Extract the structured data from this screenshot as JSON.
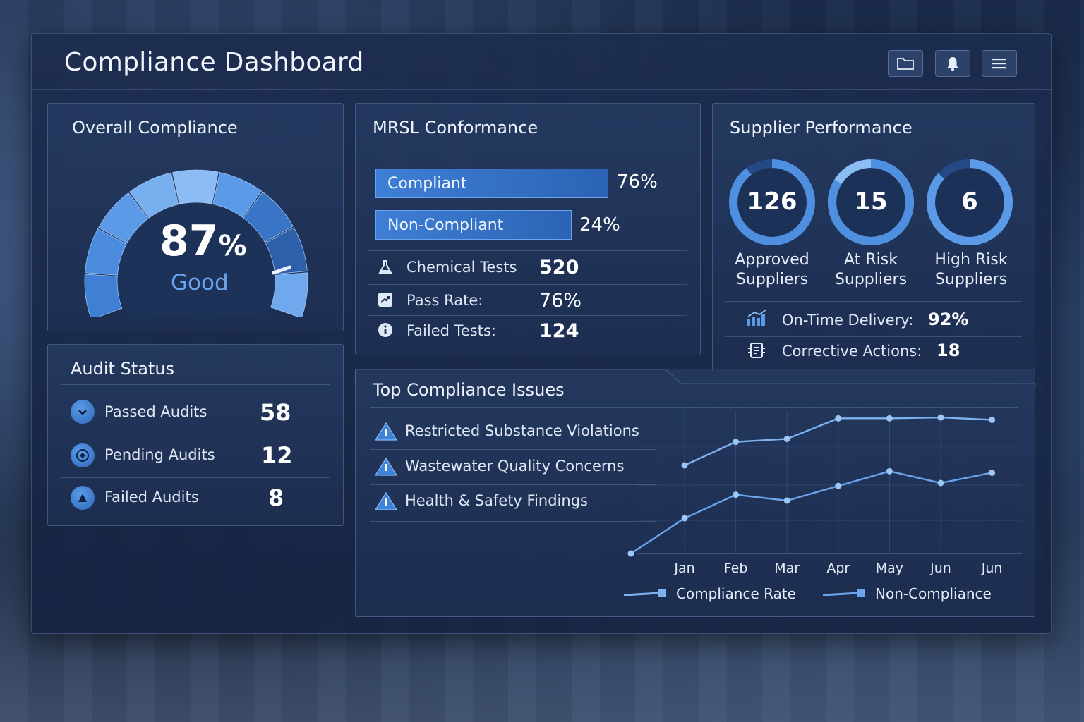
{
  "app": {
    "title": "Compliance Dashboard",
    "accent_color": "#4a8fe0",
    "header_icons": [
      "folder-icon",
      "bell-icon",
      "menu-icon"
    ]
  },
  "overall": {
    "title": "Overall Compliance",
    "value": "87",
    "unit": "%",
    "percent": 87,
    "rating": "Good"
  },
  "mrsl": {
    "title": "MRSL Conformance",
    "bars": [
      {
        "label": "Compliant",
        "value": "76%",
        "percent": 76
      },
      {
        "label": "Non-Compliant",
        "value": "24%",
        "percent": 24
      }
    ],
    "stats": [
      {
        "icon": "flask-icon",
        "label": "Chemical Tests",
        "value": "520"
      },
      {
        "icon": "trend-icon",
        "label": "Pass Rate:",
        "value": "76%"
      },
      {
        "icon": "info-icon",
        "label": "Failed Tests:",
        "value": "124"
      }
    ]
  },
  "supplier": {
    "title": "Supplier Performance",
    "rings": [
      {
        "value": "126",
        "line1": "Approved",
        "line2": "Suppliers"
      },
      {
        "value": "15",
        "line1": "At Risk",
        "line2": "Suppliers"
      },
      {
        "value": "6",
        "line1": "High Risk",
        "line2": "Suppliers"
      }
    ],
    "stats": [
      {
        "icon": "bar-chart-icon",
        "label": "On-Time Delivery:",
        "value": "92%"
      },
      {
        "icon": "clipboard-icon",
        "label": "Corrective Actions:",
        "value": "18"
      }
    ]
  },
  "audit": {
    "title": "Audit Status",
    "items": [
      {
        "icon": "check-icon",
        "label": "Passed Audits",
        "value": "58"
      },
      {
        "icon": "clock-icon",
        "label": "Pending Audits",
        "value": "12"
      },
      {
        "icon": "warning-icon",
        "label": "Failed Audits",
        "value": "8"
      }
    ]
  },
  "issues": {
    "title": "Top Compliance Issues",
    "items": [
      "Restricted Substance Violations",
      "Wastewater Quality Concerns",
      "Health & Safety Findings"
    ]
  },
  "chart_data": {
    "type": "line",
    "x": [
      "Jan",
      "Feb",
      "Mar",
      "Apr",
      "May",
      "Jun",
      "Jun"
    ],
    "series": [
      {
        "name": "Compliance Rate",
        "color": "#7fb2f0",
        "values": [
          72,
          80,
          81,
          88,
          88,
          88.3,
          87.5
        ]
      },
      {
        "name": "Non-Compliance",
        "color": "#6ba4ea",
        "values": [
          54,
          62,
          60,
          65,
          70,
          66,
          69.5
        ]
      }
    ],
    "ylim": [
      42,
      90
    ],
    "grid": true,
    "legend": "bottom"
  }
}
